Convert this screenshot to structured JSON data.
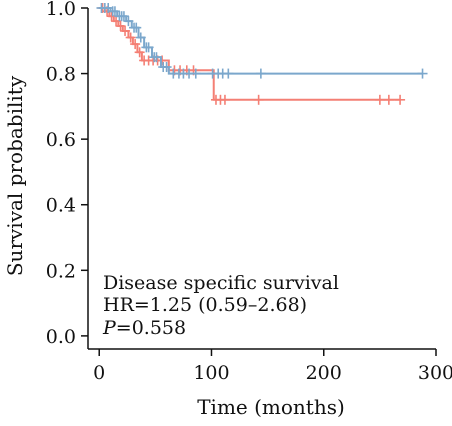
{
  "chart_data": {
    "type": "line",
    "subtype": "kaplan-meier",
    "xlabel": "Time (months)",
    "ylabel": "Survival probability",
    "xlim": [
      -10,
      300
    ],
    "ylim": [
      -0.04,
      1.0
    ],
    "xticks": [
      0,
      100,
      200,
      300
    ],
    "yticks": [
      0.0,
      0.2,
      0.4,
      0.6,
      0.8,
      1.0
    ],
    "xtick_labels": [
      "0",
      "100",
      "200",
      "300"
    ],
    "ytick_labels": [
      "0.0",
      "0.2",
      "0.4",
      "0.6",
      "0.8",
      "1.0"
    ],
    "grid": false,
    "annotations": {
      "line1": "Disease specific survival",
      "line2": "HR=1.25 (0.59–2.68)",
      "p_label": "P",
      "p_value": "=0.558"
    },
    "series": [
      {
        "color": "#f47f74",
        "steps": [
          [
            0,
            1.0
          ],
          [
            5,
            0.99
          ],
          [
            9,
            0.975
          ],
          [
            13,
            0.96
          ],
          [
            17,
            0.945
          ],
          [
            21,
            0.93
          ],
          [
            26,
            0.91
          ],
          [
            30,
            0.89
          ],
          [
            34,
            0.865
          ],
          [
            38,
            0.84
          ],
          [
            62,
            0.81
          ],
          [
            100,
            0.81
          ],
          [
            102,
            0.72
          ],
          [
            268,
            0.72
          ]
        ],
        "censored": [
          [
            3,
            1.0
          ],
          [
            7,
            0.99
          ],
          [
            11,
            0.975
          ],
          [
            15,
            0.96
          ],
          [
            19,
            0.945
          ],
          [
            23,
            0.93
          ],
          [
            28,
            0.91
          ],
          [
            32,
            0.89
          ],
          [
            36,
            0.865
          ],
          [
            40,
            0.84
          ],
          [
            44,
            0.84
          ],
          [
            48,
            0.84
          ],
          [
            52,
            0.84
          ],
          [
            56,
            0.84
          ],
          [
            67,
            0.81
          ],
          [
            72,
            0.81
          ],
          [
            78,
            0.81
          ],
          [
            84,
            0.81
          ],
          [
            104,
            0.72
          ],
          [
            108,
            0.72
          ],
          [
            112,
            0.72
          ],
          [
            142,
            0.72
          ],
          [
            250,
            0.72
          ],
          [
            258,
            0.72
          ],
          [
            268,
            0.72
          ]
        ]
      },
      {
        "color": "#7ba7cc",
        "steps": [
          [
            0,
            1.0
          ],
          [
            10,
            0.99
          ],
          [
            16,
            0.975
          ],
          [
            24,
            0.96
          ],
          [
            29,
            0.94
          ],
          [
            35,
            0.91
          ],
          [
            40,
            0.88
          ],
          [
            47,
            0.85
          ],
          [
            55,
            0.82
          ],
          [
            62,
            0.8
          ],
          [
            288,
            0.8
          ]
        ],
        "censored": [
          [
            2,
            1.0
          ],
          [
            5,
            1.0
          ],
          [
            8,
            1.0
          ],
          [
            12,
            0.99
          ],
          [
            14,
            0.99
          ],
          [
            18,
            0.975
          ],
          [
            20,
            0.975
          ],
          [
            22,
            0.975
          ],
          [
            26,
            0.96
          ],
          [
            31,
            0.94
          ],
          [
            33,
            0.94
          ],
          [
            37,
            0.91
          ],
          [
            42,
            0.88
          ],
          [
            44,
            0.88
          ],
          [
            49,
            0.85
          ],
          [
            51,
            0.85
          ],
          [
            57,
            0.82
          ],
          [
            60,
            0.82
          ],
          [
            66,
            0.8
          ],
          [
            71,
            0.8
          ],
          [
            75,
            0.8
          ],
          [
            80,
            0.8
          ],
          [
            86,
            0.8
          ],
          [
            101,
            0.8
          ],
          [
            106,
            0.8
          ],
          [
            110,
            0.8
          ],
          [
            115,
            0.8
          ],
          [
            144,
            0.8
          ],
          [
            288,
            0.8
          ]
        ]
      }
    ]
  }
}
